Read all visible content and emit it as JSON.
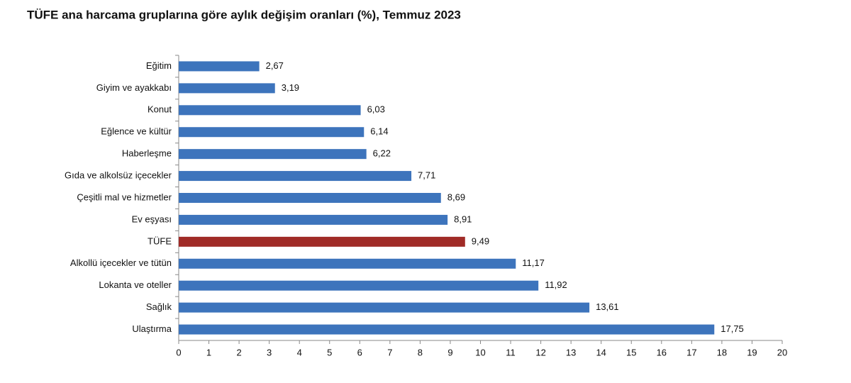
{
  "chart_data": {
    "type": "bar",
    "orientation": "horizontal",
    "title": "TÜFE ana harcama gruplarına göre aylık değişim oranları (%), Temmuz 2023",
    "categories": [
      "Eğitim",
      "Giyim ve ayakkabı",
      "Konut",
      "Eğlence ve kültür",
      "Haberleşme",
      "Gıda ve alkolsüz içecekler",
      "Çeşitli mal ve hizmetler",
      "Ev eşyası",
      "TÜFE",
      "Alkollü içecekler ve tütün",
      "Lokanta ve oteller",
      "Sağlık",
      "Ulaştırma"
    ],
    "values": [
      2.67,
      3.19,
      6.03,
      6.14,
      6.22,
      7.71,
      8.69,
      8.91,
      9.49,
      11.17,
      11.92,
      13.61,
      17.75
    ],
    "value_labels": [
      "2,67",
      "3,19",
      "6,03",
      "6,14",
      "6,22",
      "7,71",
      "8,69",
      "8,91",
      "9,49",
      "11,17",
      "11,92",
      "13,61",
      "17,75"
    ],
    "colors": [
      "#3d74bc",
      "#3d74bc",
      "#3d74bc",
      "#3d74bc",
      "#3d74bc",
      "#3d74bc",
      "#3d74bc",
      "#3d74bc",
      "#a02b27",
      "#3d74bc",
      "#3d74bc",
      "#3d74bc",
      "#3d74bc"
    ],
    "xlim": [
      0,
      20
    ],
    "xticks": [
      0,
      1,
      2,
      3,
      4,
      5,
      6,
      7,
      8,
      9,
      10,
      11,
      12,
      13,
      14,
      15,
      16,
      17,
      18,
      19,
      20
    ]
  }
}
